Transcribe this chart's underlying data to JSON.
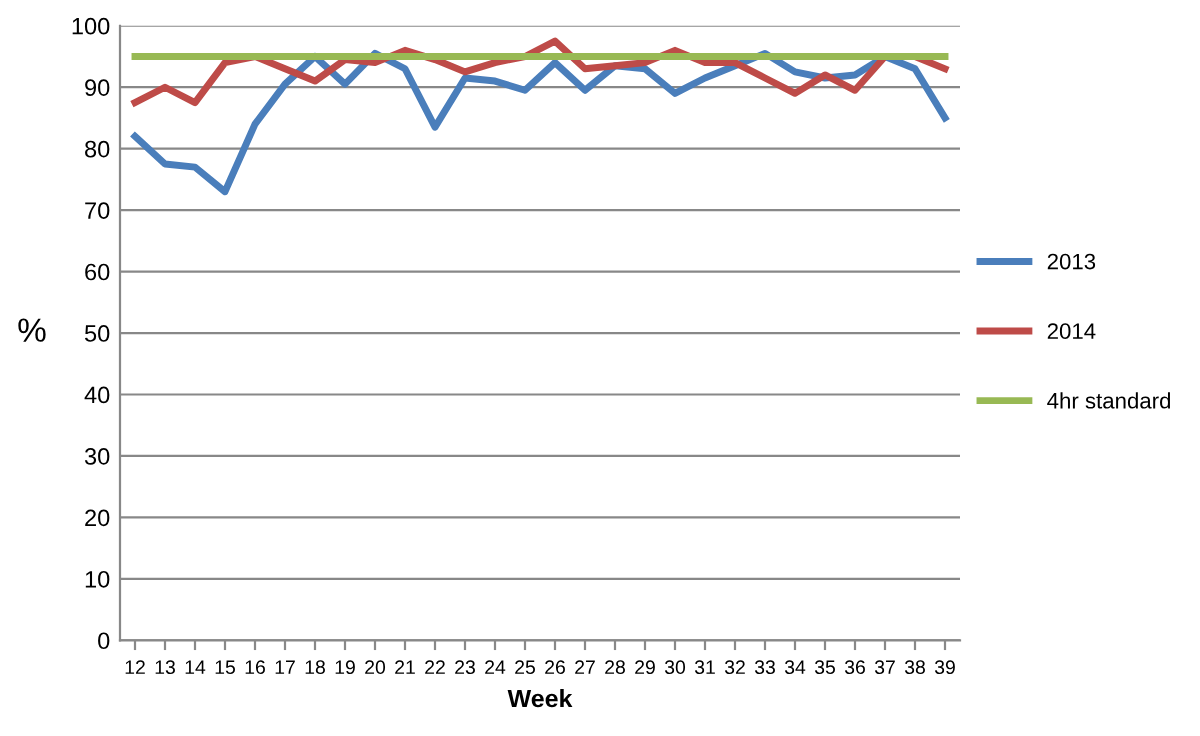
{
  "chart_data": {
    "type": "line",
    "xlabel": "Week",
    "ylabel": "%",
    "categories": [
      "12",
      "13",
      "14",
      "15",
      "16",
      "17",
      "18",
      "19",
      "20",
      "21",
      "22",
      "23",
      "24",
      "25",
      "26",
      "27",
      "28",
      "29",
      "30",
      "31",
      "32",
      "33",
      "34",
      "35",
      "36",
      "37",
      "38",
      "39"
    ],
    "series": [
      {
        "name": "2013",
        "color": "#4a7ebb",
        "values": [
          82,
          77.5,
          77,
          73,
          84,
          90.5,
          95,
          90.5,
          95.5,
          93,
          83.5,
          91.5,
          91,
          89.5,
          94,
          89.5,
          93.5,
          93,
          89,
          91.5,
          93.5,
          95.5,
          92.5,
          91.5,
          92,
          95,
          93,
          85
        ]
      },
      {
        "name": "2014",
        "color": "#be4b48",
        "values": [
          87.5,
          90,
          87.5,
          94,
          95,
          93,
          91,
          94.5,
          94,
          96,
          94.5,
          92.5,
          94,
          95,
          97.5,
          93,
          93.5,
          94,
          96,
          94,
          94,
          91.5,
          89,
          92,
          89.5,
          95,
          95,
          93
        ]
      },
      {
        "name": "4hr standard",
        "color": "#98b954",
        "values": [
          95,
          95,
          95,
          95,
          95,
          95,
          95,
          95,
          95,
          95,
          95,
          95,
          95,
          95,
          95,
          95,
          95,
          95,
          95,
          95,
          95,
          95,
          95,
          95,
          95,
          95,
          95,
          95
        ]
      }
    ],
    "ylim": [
      0,
      100
    ],
    "yticks": [
      0,
      10,
      20,
      30,
      40,
      50,
      60,
      70,
      80,
      90,
      100
    ],
    "grid": "y",
    "legend": "right",
    "marker": "none",
    "line_style": "solid"
  }
}
